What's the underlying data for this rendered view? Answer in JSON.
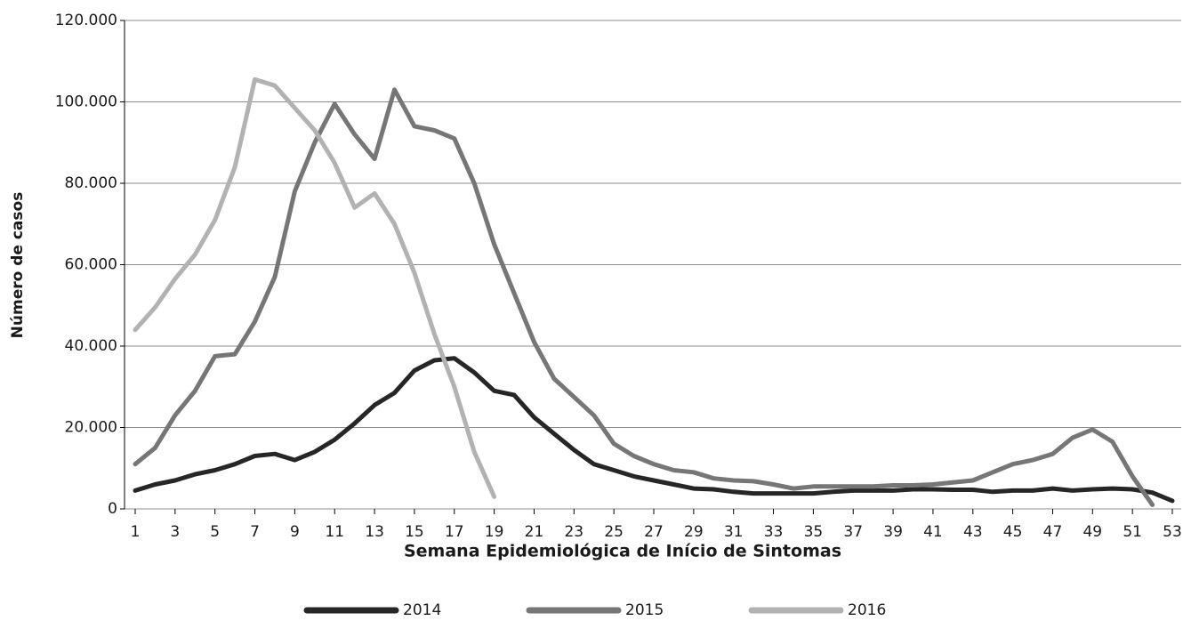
{
  "chart_data": {
    "type": "line",
    "x_label": "Semana Epidemiológica de Início de Sintomas",
    "y_label": "Número de casos",
    "x": [
      1,
      2,
      3,
      4,
      5,
      6,
      7,
      8,
      9,
      10,
      11,
      12,
      13,
      14,
      15,
      16,
      17,
      18,
      19,
      20,
      21,
      22,
      23,
      24,
      25,
      26,
      27,
      28,
      29,
      30,
      31,
      32,
      33,
      34,
      35,
      36,
      37,
      38,
      39,
      40,
      41,
      42,
      43,
      44,
      45,
      46,
      47,
      48,
      49,
      50,
      51,
      52,
      53
    ],
    "xlim": [
      1,
      53
    ],
    "xticks": [
      1,
      3,
      5,
      7,
      9,
      11,
      13,
      15,
      17,
      19,
      21,
      23,
      25,
      27,
      29,
      31,
      33,
      35,
      37,
      39,
      41,
      43,
      45,
      47,
      49,
      51,
      53
    ],
    "ylim": [
      0,
      120000
    ],
    "yticks": [
      0,
      {
        "value": 20000,
        "label": "20.000"
      },
      {
        "value": 40000,
        "label": "40.000"
      },
      {
        "value": 60000,
        "label": "60.000"
      },
      {
        "value": 80000,
        "label": "80.000"
      },
      {
        "value": 100000,
        "label": "100.000"
      },
      {
        "value": 120000,
        "label": "120.000"
      }
    ],
    "grid": true,
    "legend": "bottom",
    "series": [
      {
        "name": "2014",
        "color": "#262626",
        "values": [
          4500,
          6000,
          7000,
          8500,
          9500,
          11000,
          13000,
          13500,
          12000,
          14000,
          17000,
          21000,
          25500,
          28500,
          34000,
          36500,
          37000,
          33500,
          29000,
          28000,
          22500,
          18500,
          14500,
          11000,
          9500,
          8000,
          7000,
          6000,
          5000,
          4800,
          4200,
          3800,
          3800,
          3800,
          3800,
          4200,
          4500,
          4500,
          4500,
          4800,
          4800,
          4700,
          4700,
          4200,
          4500,
          4500,
          5000,
          4500,
          4800,
          5000,
          4800,
          4000,
          2000
        ]
      },
      {
        "name": "2015",
        "color": "#767676",
        "values": [
          11000,
          15000,
          23000,
          29000,
          37500,
          38000,
          46000,
          57000,
          78000,
          90000,
          99500,
          92000,
          86000,
          103000,
          94000,
          93000,
          91000,
          80000,
          65000,
          53000,
          41000,
          32000,
          27500,
          23000,
          16000,
          13000,
          11000,
          9500,
          9000,
          7500,
          7000,
          6800,
          6000,
          5000,
          5500,
          5500,
          5500,
          5500,
          5800,
          5800,
          6000,
          6500,
          7000,
          9000,
          11000,
          12000,
          13500,
          17500,
          19500,
          16500,
          8000,
          1000,
          null
        ]
      },
      {
        "name": "2016",
        "color": "#b2b2b2",
        "values": [
          44000,
          49500,
          56500,
          62500,
          71000,
          84000,
          105500,
          104000,
          98500,
          93000,
          85000,
          74000,
          77500,
          70000,
          58000,
          43000,
          30000,
          14000,
          3000,
          null,
          null,
          null,
          null,
          null,
          null,
          null,
          null,
          null,
          null,
          null,
          null,
          null,
          null,
          null,
          null,
          null,
          null,
          null,
          null,
          null,
          null,
          null,
          null,
          null,
          null,
          null,
          null,
          null,
          null,
          null,
          null,
          null,
          null
        ]
      }
    ]
  }
}
